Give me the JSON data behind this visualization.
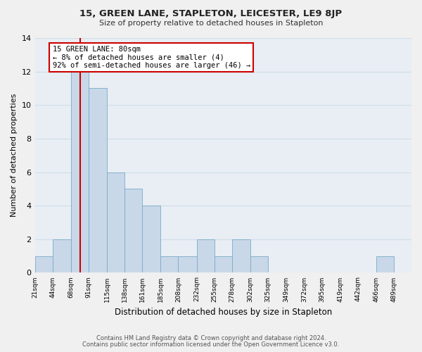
{
  "title": "15, GREEN LANE, STAPLETON, LEICESTER, LE9 8JP",
  "subtitle": "Size of property relative to detached houses in Stapleton",
  "xlabel": "Distribution of detached houses by size in Stapleton",
  "ylabel": "Number of detached properties",
  "bin_labels": [
    "21sqm",
    "44sqm",
    "68sqm",
    "91sqm",
    "115sqm",
    "138sqm",
    "161sqm",
    "185sqm",
    "208sqm",
    "232sqm",
    "255sqm",
    "278sqm",
    "302sqm",
    "325sqm",
    "349sqm",
    "372sqm",
    "395sqm",
    "419sqm",
    "442sqm",
    "466sqm",
    "489sqm"
  ],
  "bin_edges": [
    21,
    44,
    68,
    91,
    115,
    138,
    161,
    185,
    208,
    232,
    255,
    278,
    302,
    325,
    349,
    372,
    395,
    419,
    442,
    466,
    489,
    512
  ],
  "bar_heights": [
    1,
    2,
    12,
    11,
    6,
    5,
    4,
    1,
    1,
    2,
    1,
    2,
    1,
    0,
    0,
    0,
    0,
    0,
    0,
    1,
    0
  ],
  "bar_color": "#c8d8e8",
  "bar_edge_color": "#7aaac8",
  "red_line_x": 80,
  "annotation_line1": "15 GREEN LANE: 80sqm",
  "annotation_line2": "← 8% of detached houses are smaller (4)",
  "annotation_line3": "92% of semi-detached houses are larger (46) →",
  "annotation_box_color": "#ffffff",
  "annotation_box_edge_color": "#cc0000",
  "ylim": [
    0,
    14
  ],
  "yticks": [
    0,
    2,
    4,
    6,
    8,
    10,
    12,
    14
  ],
  "grid_color": "#d0dce8",
  "plot_bg_color": "#e8eef4",
  "fig_bg_color": "#f0f0f0",
  "footer_line1": "Contains HM Land Registry data © Crown copyright and database right 2024.",
  "footer_line2": "Contains public sector information licensed under the Open Government Licence v3.0."
}
